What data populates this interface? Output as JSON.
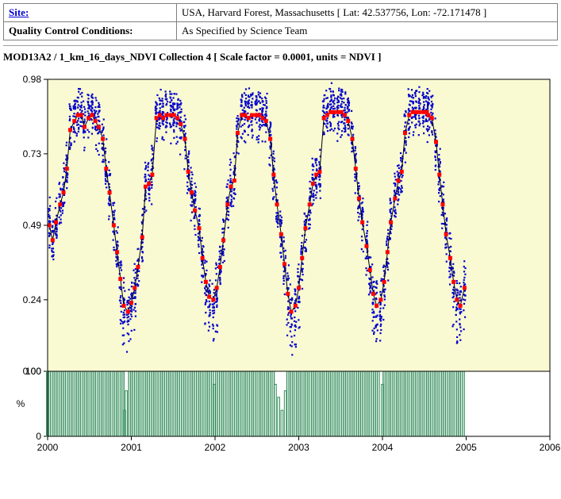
{
  "meta": {
    "site_label": "Site:",
    "site_value": "USA, Harvard Forest, Massachusetts [ Lat: 42.537756, Lon: -72.171478 ]",
    "qc_label": "Quality Control Conditions:",
    "qc_value": "As Specified by Science Team"
  },
  "chart": {
    "title": "MOD13A2 / 1_km_16_days_NDVI Collection 4 [ Scale factor = 0.0001, units = NDVI ]",
    "background_color": "#fafad2",
    "lower_background_color": "#ffffff",
    "grid_border_color": "#000000",
    "scatter_color": "#0000cc",
    "scatter_size": 2.2,
    "scatter_opacity": 1.0,
    "highlight_color": "#ff0000",
    "highlight_size": 5,
    "line_color": "#000000",
    "line_width": 1,
    "bar_color": "#2e8b57",
    "bar_outline": "#2e8b57",
    "axis_font_size": 12,
    "x": {
      "min": 2000.0,
      "max": 2006.0,
      "ticks": [
        "2000",
        "2001",
        "2002",
        "2003",
        "2004",
        "2005",
        "2006"
      ]
    },
    "y_top": {
      "min": 0.0,
      "max": 0.98,
      "ticks": [
        "0.00",
        "0.24",
        "0.49",
        "0.73",
        "0.98"
      ],
      "tick_vals": [
        0.0,
        0.24,
        0.49,
        0.73,
        0.98
      ]
    },
    "y_bot": {
      "label": "%",
      "ticks": [
        "0",
        "100"
      ],
      "tick_vals": [
        0,
        100
      ]
    },
    "red_series": [
      [
        2000.02,
        0.49
      ],
      [
        2000.06,
        0.44
      ],
      [
        2000.1,
        0.5
      ],
      [
        2000.15,
        0.56
      ],
      [
        2000.19,
        0.6
      ],
      [
        2000.23,
        0.68
      ],
      [
        2000.27,
        0.81
      ],
      [
        2000.32,
        0.84
      ],
      [
        2000.36,
        0.86
      ],
      [
        2000.4,
        0.86
      ],
      [
        2000.44,
        0.82
      ],
      [
        2000.49,
        0.85
      ],
      [
        2000.53,
        0.86
      ],
      [
        2000.57,
        0.84
      ],
      [
        2000.61,
        0.82
      ],
      [
        2000.66,
        0.78
      ],
      [
        2000.7,
        0.68
      ],
      [
        2000.74,
        0.6
      ],
      [
        2000.79,
        0.49
      ],
      [
        2000.83,
        0.4
      ],
      [
        2000.87,
        0.31
      ],
      [
        2000.91,
        0.22
      ],
      [
        2000.96,
        0.2
      ],
      [
        2001.0,
        0.23
      ],
      [
        2001.04,
        0.28
      ],
      [
        2001.08,
        0.35
      ],
      [
        2001.13,
        0.45
      ],
      [
        2001.17,
        0.62
      ],
      [
        2001.21,
        0.63
      ],
      [
        2001.25,
        0.66
      ],
      [
        2001.3,
        0.85
      ],
      [
        2001.34,
        0.86
      ],
      [
        2001.38,
        0.85
      ],
      [
        2001.42,
        0.86
      ],
      [
        2001.47,
        0.86
      ],
      [
        2001.51,
        0.86
      ],
      [
        2001.55,
        0.85
      ],
      [
        2001.59,
        0.83
      ],
      [
        2001.64,
        0.78
      ],
      [
        2001.68,
        0.67
      ],
      [
        2001.72,
        0.6
      ],
      [
        2001.76,
        0.54
      ],
      [
        2001.81,
        0.48
      ],
      [
        2001.85,
        0.38
      ],
      [
        2001.89,
        0.3
      ],
      [
        2001.93,
        0.25
      ],
      [
        2001.98,
        0.24
      ],
      [
        2002.02,
        0.28
      ],
      [
        2002.06,
        0.35
      ],
      [
        2002.1,
        0.44
      ],
      [
        2002.15,
        0.56
      ],
      [
        2002.19,
        0.62
      ],
      [
        2002.23,
        0.64
      ],
      [
        2002.27,
        0.8
      ],
      [
        2002.32,
        0.86
      ],
      [
        2002.36,
        0.86
      ],
      [
        2002.4,
        0.85
      ],
      [
        2002.44,
        0.86
      ],
      [
        2002.49,
        0.86
      ],
      [
        2002.53,
        0.86
      ],
      [
        2002.57,
        0.85
      ],
      [
        2002.61,
        0.84
      ],
      [
        2002.66,
        0.78
      ],
      [
        2002.7,
        0.66
      ],
      [
        2002.74,
        0.56
      ],
      [
        2002.79,
        0.46
      ],
      [
        2002.83,
        0.36
      ],
      [
        2002.87,
        0.26
      ],
      [
        2002.91,
        0.2
      ],
      [
        2002.96,
        0.22
      ],
      [
        2003.0,
        0.28
      ],
      [
        2003.04,
        0.38
      ],
      [
        2003.08,
        0.48
      ],
      [
        2003.13,
        0.56
      ],
      [
        2003.17,
        0.63
      ],
      [
        2003.21,
        0.66
      ],
      [
        2003.25,
        0.67
      ],
      [
        2003.3,
        0.85
      ],
      [
        2003.34,
        0.86
      ],
      [
        2003.38,
        0.87
      ],
      [
        2003.42,
        0.87
      ],
      [
        2003.47,
        0.87
      ],
      [
        2003.51,
        0.87
      ],
      [
        2003.55,
        0.86
      ],
      [
        2003.59,
        0.84
      ],
      [
        2003.64,
        0.78
      ],
      [
        2003.68,
        0.68
      ],
      [
        2003.72,
        0.58
      ],
      [
        2003.76,
        0.5
      ],
      [
        2003.81,
        0.42
      ],
      [
        2003.85,
        0.34
      ],
      [
        2003.89,
        0.26
      ],
      [
        2003.93,
        0.22
      ],
      [
        2003.98,
        0.24
      ],
      [
        2004.02,
        0.3
      ],
      [
        2004.06,
        0.4
      ],
      [
        2004.1,
        0.5
      ],
      [
        2004.15,
        0.58
      ],
      [
        2004.19,
        0.64
      ],
      [
        2004.23,
        0.67
      ],
      [
        2004.27,
        0.8
      ],
      [
        2004.32,
        0.86
      ],
      [
        2004.36,
        0.87
      ],
      [
        2004.4,
        0.87
      ],
      [
        2004.44,
        0.87
      ],
      [
        2004.49,
        0.87
      ],
      [
        2004.53,
        0.87
      ],
      [
        2004.55,
        0.86
      ],
      [
        2004.59,
        0.85
      ],
      [
        2004.64,
        0.77
      ],
      [
        2004.68,
        0.66
      ],
      [
        2004.72,
        0.56
      ],
      [
        2004.76,
        0.46
      ],
      [
        2004.81,
        0.38
      ],
      [
        2004.85,
        0.3
      ],
      [
        2004.89,
        0.24
      ],
      [
        2004.93,
        0.22
      ],
      [
        2004.98,
        0.28
      ]
    ],
    "bar_step": 0.045,
    "bars_full": [
      [
        2000.0,
        2000.9
      ],
      [
        2000.98,
        2001.97
      ],
      [
        2002.02,
        2002.7
      ],
      [
        2002.87,
        2003.97
      ],
      [
        2004.02,
        2004.98
      ]
    ],
    "bars_partial": [
      [
        2000.92,
        40
      ],
      [
        2000.94,
        70
      ],
      [
        2002.72,
        80
      ],
      [
        2002.76,
        60
      ],
      [
        2002.8,
        40
      ],
      [
        2002.84,
        70
      ],
      [
        2001.99,
        80
      ],
      [
        2004.0,
        80
      ]
    ],
    "scatter_cloud": {
      "spread_y": 0.07,
      "n_per_red": 24
    }
  }
}
